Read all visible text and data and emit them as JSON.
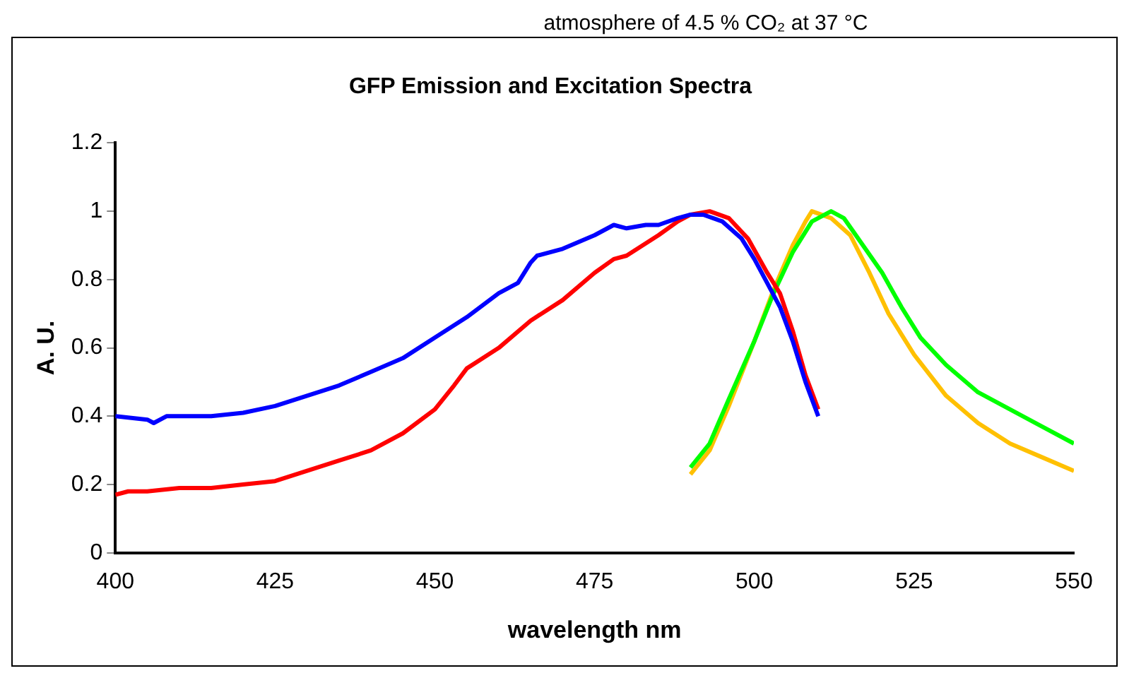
{
  "chart_data": {
    "type": "line",
    "title": "GFP Emission and Excitation Spectra",
    "xlabel": "wavelength nm",
    "ylabel": "A. U.",
    "annotations": [
      "atmosphere of 4.5 % CO₂ at 37 °C"
    ],
    "xlim": [
      400,
      550
    ],
    "xticks": [
      400,
      425,
      450,
      475,
      500,
      525,
      550
    ],
    "ylim": [
      0,
      1.2
    ],
    "yticks": [
      0,
      {
        "value": 0.2,
        "label": "0.2"
      },
      {
        "value": 0.4,
        "label": "0.4"
      },
      {
        "value": 0.6,
        "label": "0.6"
      },
      {
        "value": 0.8,
        "label": "0.8"
      },
      1,
      {
        "value": 1.2,
        "label": "1.2"
      }
    ],
    "grid": false,
    "legend": false,
    "marker": "none",
    "line_style": "solid",
    "series": [
      {
        "color": "#0000ff",
        "x": [
          400,
          405,
          406,
          408,
          412,
          415,
          420,
          425,
          430,
          435,
          440,
          445,
          450,
          455,
          460,
          463,
          465,
          466,
          470,
          475,
          478,
          480,
          483,
          485,
          488,
          490,
          492,
          495,
          498,
          500,
          502,
          504,
          506,
          508,
          510
        ],
        "values": [
          0.4,
          0.39,
          0.38,
          0.4,
          0.4,
          0.4,
          0.41,
          0.43,
          0.46,
          0.49,
          0.53,
          0.57,
          0.63,
          0.69,
          0.76,
          0.79,
          0.85,
          0.87,
          0.89,
          0.93,
          0.96,
          0.95,
          0.96,
          0.96,
          0.98,
          0.99,
          0.99,
          0.97,
          0.92,
          0.86,
          0.79,
          0.72,
          0.62,
          0.5,
          0.4
        ]
      },
      {
        "color": "#ff0000",
        "x": [
          400,
          402,
          405,
          410,
          415,
          420,
          425,
          430,
          435,
          440,
          445,
          450,
          453,
          455,
          460,
          465,
          470,
          475,
          478,
          480,
          485,
          488,
          490,
          493,
          496,
          499,
          502,
          504,
          506,
          508,
          510
        ],
        "values": [
          0.17,
          0.18,
          0.18,
          0.19,
          0.19,
          0.2,
          0.21,
          0.24,
          0.27,
          0.3,
          0.35,
          0.42,
          0.49,
          0.54,
          0.6,
          0.68,
          0.74,
          0.82,
          0.86,
          0.87,
          0.93,
          0.97,
          0.99,
          1.0,
          0.98,
          0.92,
          0.82,
          0.76,
          0.65,
          0.52,
          0.42
        ]
      },
      {
        "color": "#00ff00",
        "x": [
          490,
          493,
          496,
          500,
          503,
          506,
          509,
          512,
          514,
          517,
          520,
          523,
          526,
          530,
          535,
          540,
          545,
          550
        ],
        "values": [
          0.25,
          0.32,
          0.45,
          0.62,
          0.76,
          0.88,
          0.97,
          1.0,
          0.98,
          0.9,
          0.82,
          0.72,
          0.63,
          0.55,
          0.47,
          0.42,
          0.37,
          0.32
        ]
      },
      {
        "color": "#ffc000",
        "x": [
          490,
          493,
          496,
          500,
          503,
          506,
          508,
          509,
          512,
          515,
          518,
          521,
          525,
          530,
          535,
          540,
          545,
          550
        ],
        "values": [
          0.23,
          0.3,
          0.43,
          0.62,
          0.77,
          0.9,
          0.97,
          1.0,
          0.98,
          0.93,
          0.82,
          0.7,
          0.58,
          0.46,
          0.38,
          0.32,
          0.28,
          0.24
        ]
      }
    ]
  }
}
